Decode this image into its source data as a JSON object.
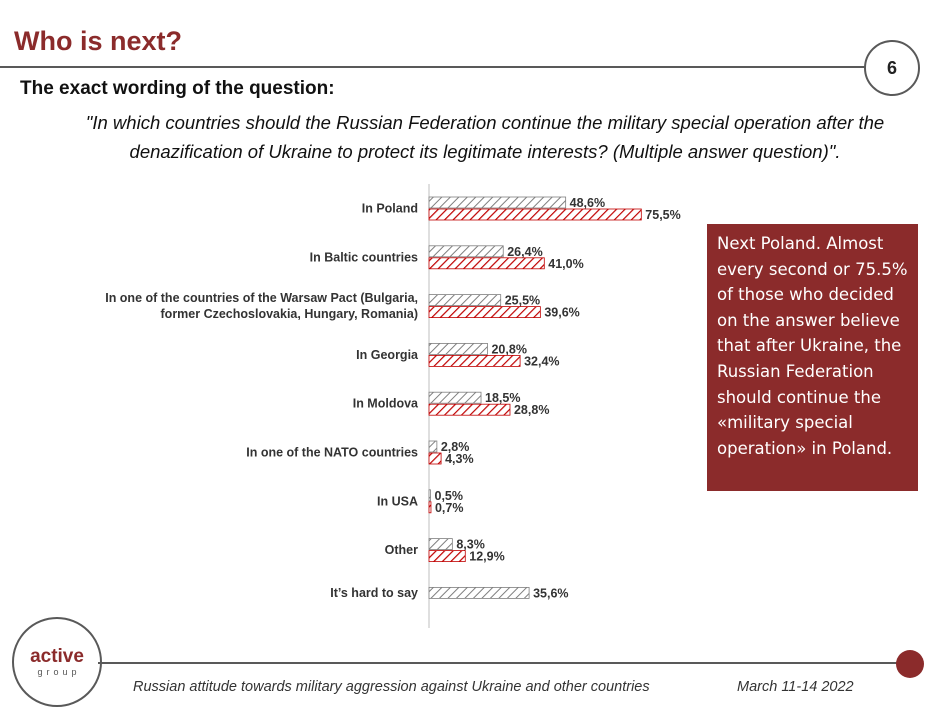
{
  "slide": {
    "title": "Who is next?",
    "page_number": "6",
    "question_heading": "The exact wording of the question:",
    "question_text": "\"In which countries should the Russian Federation continue the military special operation after the denazification of Ukraine to protect its legitimate interests? (Multiple answer question)\"."
  },
  "callout": {
    "text": "Next Poland. Almost every second or 75.5% of those who decided on the answer believe that after Ukraine, the Russian Federation should continue the «military special operation» in Poland."
  },
  "logo": {
    "main": "active",
    "sub": "group"
  },
  "footer": {
    "subtitle": "Russian attitude towards military aggression against Ukraine and other countries",
    "date": "March 11-14 2022"
  },
  "colors": {
    "accent": "#8b2b2b",
    "gray_hatch": "#7f7f7f",
    "red_hatch": "#c00000",
    "rule": "#595959"
  },
  "chart_data": {
    "type": "bar",
    "orientation": "horizontal",
    "categories": [
      [
        "In Poland"
      ],
      [
        "In Baltic countries"
      ],
      [
        "In one of the countries of the Warsaw Pact (Bulgaria,",
        "former Czechoslovakia, Hungary, Romania)"
      ],
      [
        "In Georgia"
      ],
      [
        "In Moldova"
      ],
      [
        "In one of the NATO countries"
      ],
      [
        "In USA"
      ],
      [
        "Other"
      ],
      [
        "It’s hard to say"
      ]
    ],
    "series": [
      {
        "style": "gray-hatched",
        "values": [
          48.6,
          26.4,
          25.5,
          20.8,
          18.5,
          2.8,
          0.5,
          8.3,
          35.6
        ]
      },
      {
        "style": "red-hatched",
        "values": [
          75.5,
          41.0,
          39.6,
          32.4,
          28.8,
          4.3,
          0.7,
          12.9,
          null
        ]
      }
    ],
    "value_labels": [
      [
        "48,6%",
        "26,4%",
        "25,5%",
        "20,8%",
        "18,5%",
        "2,8%",
        "0,5%",
        "8,3%",
        "35,6%"
      ],
      [
        "75,5%",
        "41,0%",
        "39,6%",
        "32,4%",
        "28,8%",
        "4,3%",
        "0,7%",
        "12,9%",
        null
      ]
    ],
    "xlim": [
      0,
      100
    ],
    "legend": "none",
    "grid": false
  }
}
